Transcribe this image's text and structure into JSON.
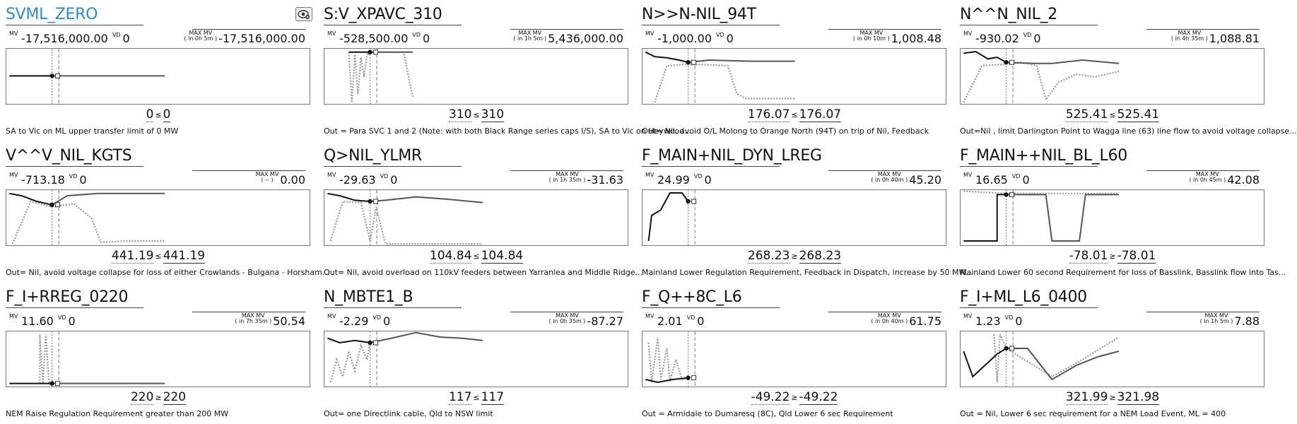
{
  "labels": {
    "mv": "MV",
    "vd": "VD",
    "max_mv": "MAX MV"
  },
  "colors": {
    "title_link": "#2a8bd8",
    "actual": "#111111",
    "forecast": "#555555",
    "forecast_dotted": "#999999"
  },
  "tool_icon": "view-settings-icon",
  "constraints": [
    {
      "name": "SVML_ZERO",
      "is_link": true,
      "mv": "-17,516,000.00",
      "vd": "0",
      "max_when": "( in 0h 5m )",
      "max_mv": "-17,516,000.00",
      "lhs": "0",
      "operator": "≤",
      "rhs": "0",
      "description": "SA to Vic on ML upper transfer limit of 0 MW",
      "trend": {
        "actual": [
          [
            0.01,
            0.48
          ],
          [
            0.15,
            0.48
          ]
        ],
        "marker": [
          0.15,
          0.48
        ],
        "forecast": [
          [
            0.15,
            0.48
          ],
          [
            0.52,
            0.48
          ]
        ],
        "dotted": []
      }
    },
    {
      "name": "S:V_XPAVC_310",
      "is_link": false,
      "mv": "-528,500.00",
      "vd": "0",
      "max_when": "( in 1h 5m )",
      "max_mv": "5,436,000.00",
      "lhs": "310",
      "operator": "≤",
      "rhs": "310",
      "description": "Out = Para SVC 1 and 2 (Note: with both Black Range series caps I/S), SA to Vic on Heywood...",
      "trend": {
        "actual": [
          [
            0.08,
            0.06
          ],
          [
            0.15,
            0.06
          ]
        ],
        "marker": [
          0.15,
          0.06
        ],
        "forecast": [
          [
            0.15,
            0.06
          ],
          [
            0.29,
            0.06
          ]
        ],
        "dotted": [
          [
            0.08,
            0.06
          ],
          [
            0.09,
            0.95
          ],
          [
            0.1,
            0.1
          ],
          [
            0.11,
            0.8
          ],
          [
            0.12,
            0.15
          ],
          [
            0.13,
            0.5
          ],
          [
            0.14,
            0.1
          ],
          [
            0.15,
            0.06
          ],
          [
            0.26,
            0.06
          ],
          [
            0.28,
            0.6
          ],
          [
            0.29,
            0.85
          ]
        ]
      }
    },
    {
      "name": "N>>N-NIL_94T",
      "is_link": false,
      "mv": "-1,000.00",
      "vd": "0",
      "max_when": "( in 0h 10m )",
      "max_mv": "1,008.48",
      "lhs": "176.07",
      "operator": "≤",
      "rhs": "176.07",
      "description": "Out= Nil, avoid O/L Molong to Orange North (94T) on trip of Nil, Feedback",
      "trend": {
        "actual": [
          [
            0.01,
            0.06
          ],
          [
            0.04,
            0.14
          ],
          [
            0.08,
            0.16
          ],
          [
            0.12,
            0.2
          ],
          [
            0.15,
            0.24
          ]
        ],
        "marker": [
          0.15,
          0.24
        ],
        "forecast": [
          [
            0.15,
            0.24
          ],
          [
            0.22,
            0.2
          ],
          [
            0.35,
            0.22
          ],
          [
            0.5,
            0.22
          ]
        ],
        "dotted": [
          [
            0.04,
            0.95
          ],
          [
            0.08,
            0.3
          ],
          [
            0.13,
            0.28
          ],
          [
            0.2,
            0.28
          ],
          [
            0.28,
            0.3
          ],
          [
            0.31,
            0.8
          ],
          [
            0.34,
            0.88
          ],
          [
            0.5,
            0.88
          ]
        ]
      }
    },
    {
      "name": "N^^N_NIL_2",
      "is_link": false,
      "mv": "-930.02",
      "vd": "0",
      "max_when": "( in 4h 35m )",
      "max_mv": "1,088.81",
      "lhs": "525.41",
      "operator": "≤",
      "rhs": "525.41",
      "description": "Out=Nil , limit Darlington Point to Wagga line (63) line flow to avoid voltage collapse...",
      "trend": {
        "actual": [
          [
            0.01,
            0.08
          ],
          [
            0.05,
            0.05
          ],
          [
            0.09,
            0.18
          ],
          [
            0.12,
            0.15
          ],
          [
            0.15,
            0.24
          ]
        ],
        "marker": [
          0.15,
          0.24
        ],
        "forecast": [
          [
            0.15,
            0.24
          ],
          [
            0.24,
            0.26
          ],
          [
            0.3,
            0.26
          ],
          [
            0.4,
            0.2
          ],
          [
            0.52,
            0.26
          ]
        ],
        "dotted": [
          [
            0.01,
            0.95
          ],
          [
            0.07,
            0.3
          ],
          [
            0.13,
            0.28
          ],
          [
            0.2,
            0.24
          ],
          [
            0.25,
            0.3
          ],
          [
            0.28,
            0.9
          ],
          [
            0.32,
            0.6
          ],
          [
            0.38,
            0.45
          ],
          [
            0.44,
            0.5
          ],
          [
            0.52,
            0.4
          ]
        ]
      }
    },
    {
      "name": "V^^V_NIL_KGTS",
      "is_link": false,
      "mv": "-713.18",
      "vd": "0",
      "max_when": "( -- )",
      "max_mv": "0.00",
      "lhs": "441.19",
      "operator": "≤",
      "rhs": "441.19",
      "description": "Out= Nil, avoid voltage collapse for loss of either Crowlands - Bulgana - Horsham...",
      "trend": {
        "actual": [
          [
            0.01,
            0.06
          ],
          [
            0.05,
            0.1
          ],
          [
            0.1,
            0.2
          ],
          [
            0.15,
            0.26
          ]
        ],
        "marker": [
          0.15,
          0.26
        ],
        "forecast": [
          [
            0.15,
            0.26
          ],
          [
            0.2,
            0.1
          ],
          [
            0.3,
            0.06
          ],
          [
            0.52,
            0.06
          ]
        ],
        "dotted": [
          [
            0.02,
            0.95
          ],
          [
            0.08,
            0.2
          ],
          [
            0.15,
            0.3
          ],
          [
            0.22,
            0.24
          ],
          [
            0.28,
            0.5
          ],
          [
            0.31,
            0.92
          ],
          [
            0.4,
            0.9
          ],
          [
            0.52,
            0.9
          ]
        ]
      }
    },
    {
      "name": "Q>NIL_YLMR",
      "is_link": false,
      "mv": "-29.63",
      "vd": "0",
      "max_when": "( in 1h 35m )",
      "max_mv": "-31.63",
      "lhs": "104.84",
      "operator": "≤",
      "rhs": "104.84",
      "description": "Out= Nil, avoid overload on 110kV feeders between Yarranlea and Middle Ridge...",
      "trend": {
        "actual": [
          [
            0.01,
            0.06
          ],
          [
            0.05,
            0.1
          ],
          [
            0.1,
            0.18
          ],
          [
            0.15,
            0.2
          ]
        ],
        "marker": [
          0.15,
          0.2
        ],
        "forecast": [
          [
            0.15,
            0.2
          ],
          [
            0.2,
            0.18
          ],
          [
            0.3,
            0.12
          ],
          [
            0.4,
            0.16
          ],
          [
            0.52,
            0.22
          ]
        ],
        "dotted": [
          [
            0.02,
            0.9
          ],
          [
            0.06,
            0.2
          ],
          [
            0.12,
            0.22
          ],
          [
            0.15,
            0.9
          ],
          [
            0.17,
            0.3
          ],
          [
            0.2,
            0.95
          ],
          [
            0.52,
            0.95
          ]
        ]
      }
    },
    {
      "name": "F_MAIN+NIL_DYN_LREG",
      "is_link": false,
      "mv": "24.99",
      "vd": "0",
      "max_when": "( in 0h 40m )",
      "max_mv": "45.20",
      "lhs": "268.23",
      "operator": "≥",
      "rhs": "268.23",
      "description": "Mainland Lower Regulation Requirement, Feedback in Dispatch, increase by 50 MW...",
      "trend": {
        "actual": [
          [
            0.02,
            0.9
          ],
          [
            0.03,
            0.45
          ],
          [
            0.06,
            0.35
          ],
          [
            0.09,
            0.05
          ],
          [
            0.13,
            0.05
          ],
          [
            0.15,
            0.2
          ]
        ],
        "marker": [
          0.15,
          0.2
        ],
        "forecast": [],
        "dotted": [
          [
            0.15,
            0.2
          ],
          [
            0.17,
            0.2
          ]
        ]
      }
    },
    {
      "name": "F_MAIN++NIL_BL_L60",
      "is_link": false,
      "mv": "16.65",
      "vd": "0",
      "max_when": "( in 0h 45m )",
      "max_mv": "42.08",
      "lhs": "-78.01",
      "operator": "≥",
      "rhs": "-78.01",
      "description": "Mainland Lower 60 second Requirement for loss of Basslink, Basslink flow into Tas...",
      "trend": {
        "actual": [
          [
            0.01,
            0.9
          ],
          [
            0.12,
            0.9
          ],
          [
            0.12,
            0.08
          ],
          [
            0.15,
            0.08
          ]
        ],
        "marker": [
          0.15,
          0.08
        ],
        "forecast": [
          [
            0.15,
            0.08
          ],
          [
            0.28,
            0.08
          ],
          [
            0.3,
            0.9
          ],
          [
            0.39,
            0.9
          ],
          [
            0.41,
            0.08
          ],
          [
            0.52,
            0.08
          ]
        ],
        "dotted": [
          [
            0.01,
            0.02
          ],
          [
            0.15,
            0.06
          ],
          [
            0.52,
            0.06
          ]
        ]
      }
    },
    {
      "name": "F_I+RREG_0220",
      "is_link": false,
      "mv": "11.60",
      "vd": "0",
      "max_when": "( in 7h 35m )",
      "max_mv": "50.54",
      "lhs": "220",
      "operator": "≥",
      "rhs": "220",
      "description": "NEM Raise Regulation Requirement greater than 200 MW",
      "trend": {
        "actual": [
          [
            0.01,
            0.92
          ],
          [
            0.15,
            0.92
          ]
        ],
        "marker": [
          0.15,
          0.92
        ],
        "forecast": [
          [
            0.15,
            0.92
          ],
          [
            0.52,
            0.92
          ]
        ],
        "dotted": [
          [
            0.11,
            0.92
          ],
          [
            0.11,
            0.05
          ],
          [
            0.12,
            0.92
          ],
          [
            0.13,
            0.05
          ],
          [
            0.14,
            0.92
          ]
        ]
      }
    },
    {
      "name": "N_MBTE1_B",
      "is_link": false,
      "mv": "-2.29",
      "vd": "0",
      "max_when": "( in 0h 35m )",
      "max_mv": "-87.27",
      "lhs": "117",
      "operator": "≤",
      "rhs": "117",
      "description": "Out= one Directlink cable, Qld to NSW limit",
      "trend": {
        "actual": [
          [
            0.01,
            0.12
          ],
          [
            0.05,
            0.2
          ],
          [
            0.1,
            0.16
          ],
          [
            0.15,
            0.2
          ]
        ],
        "marker": [
          0.15,
          0.2
        ],
        "forecast": [
          [
            0.15,
            0.2
          ],
          [
            0.22,
            0.12
          ],
          [
            0.3,
            0.02
          ],
          [
            0.38,
            0.1
          ],
          [
            0.45,
            0.12
          ],
          [
            0.52,
            0.16
          ]
        ],
        "dotted": [
          [
            0.02,
            0.9
          ],
          [
            0.04,
            0.5
          ],
          [
            0.06,
            0.8
          ],
          [
            0.08,
            0.35
          ],
          [
            0.1,
            0.7
          ],
          [
            0.12,
            0.25
          ],
          [
            0.14,
            0.5
          ],
          [
            0.15,
            0.2
          ]
        ]
      }
    },
    {
      "name": "F_Q++8C_L6",
      "is_link": false,
      "mv": "2.01",
      "vd": "0",
      "max_when": "( in 0h 40m )",
      "max_mv": "61.75",
      "lhs": "-49.22",
      "operator": "≥",
      "rhs": "-49.22",
      "description": "Out =  Armidale to Dumaresq (8C), Qld Lower 6 sec Requirement",
      "trend": {
        "actual": [
          [
            0.01,
            0.85
          ],
          [
            0.05,
            0.9
          ],
          [
            0.1,
            0.85
          ],
          [
            0.15,
            0.82
          ]
        ],
        "marker": [
          0.15,
          0.82
        ],
        "forecast": [],
        "dotted": [
          [
            0.02,
            0.2
          ],
          [
            0.03,
            0.9
          ],
          [
            0.05,
            0.1
          ],
          [
            0.06,
            0.85
          ],
          [
            0.08,
            0.3
          ],
          [
            0.09,
            0.88
          ],
          [
            0.11,
            0.5
          ],
          [
            0.13,
            0.85
          ],
          [
            0.15,
            0.82
          ]
        ]
      }
    },
    {
      "name": "F_I+ML_L6_0400",
      "is_link": false,
      "mv": "1.23",
      "vd": "0",
      "max_when": "( in 1h 5m )",
      "max_mv": "7.88",
      "lhs": "321.99",
      "operator": "≥",
      "rhs": "321.98",
      "description": "Out = Nil, Lower 6 sec requirement for a NEM Load Event, ML = 400",
      "trend": {
        "actual": [
          [
            0.01,
            0.35
          ],
          [
            0.04,
            0.8
          ],
          [
            0.08,
            0.6
          ],
          [
            0.12,
            0.4
          ],
          [
            0.15,
            0.3
          ]
        ],
        "marker": [
          0.15,
          0.3
        ],
        "forecast": [
          [
            0.15,
            0.3
          ],
          [
            0.22,
            0.3
          ],
          [
            0.3,
            0.85
          ],
          [
            0.38,
            0.6
          ],
          [
            0.45,
            0.45
          ],
          [
            0.52,
            0.35
          ]
        ],
        "dotted": [
          [
            0.11,
            0.05
          ],
          [
            0.12,
            0.9
          ],
          [
            0.13,
            0.05
          ],
          [
            0.15,
            0.3
          ],
          [
            0.3,
            0.8
          ],
          [
            0.4,
            0.5
          ],
          [
            0.52,
            0.1
          ]
        ]
      }
    }
  ]
}
